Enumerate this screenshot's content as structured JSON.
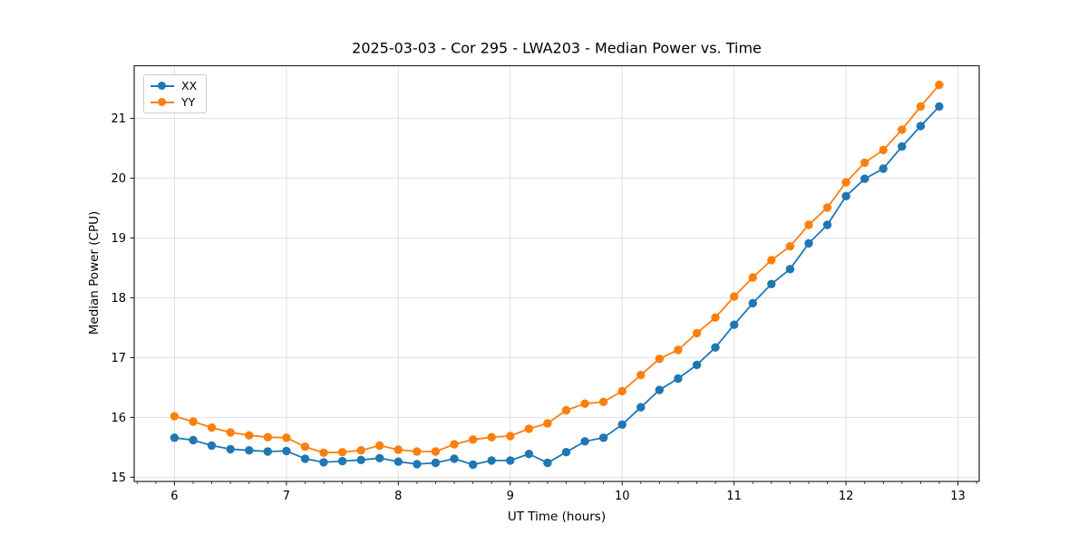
{
  "chart_data": {
    "type": "line",
    "title": "2025-03-03 - Cor 295 - LWA203 - Median Power vs. Time",
    "xlabel": "UT Time (hours)",
    "ylabel": "Median Power (CPU)",
    "xlim": [
      5.64,
      13.19
    ],
    "ylim": [
      14.93,
      21.88
    ],
    "x_ticks": [
      6,
      7,
      8,
      9,
      10,
      11,
      12,
      13
    ],
    "y_ticks": [
      15,
      16,
      17,
      18,
      19,
      20,
      21
    ],
    "x_minor_step": 0.16667,
    "grid": true,
    "grid_color": "#e3e3e3",
    "spine_color": "#262626",
    "legend_position": "upper-left",
    "x": [
      6.0,
      6.167,
      6.333,
      6.5,
      6.667,
      6.833,
      7.0,
      7.167,
      7.333,
      7.5,
      7.667,
      7.833,
      8.0,
      8.167,
      8.333,
      8.5,
      8.667,
      8.833,
      9.0,
      9.167,
      9.333,
      9.5,
      9.667,
      9.833,
      10.0,
      10.167,
      10.333,
      10.5,
      10.667,
      10.833,
      11.0,
      11.167,
      11.333,
      11.5,
      11.667,
      11.833,
      12.0,
      12.167,
      12.333,
      12.5,
      12.667,
      12.833
    ],
    "series": [
      {
        "name": "XX",
        "color": "#1f77b4",
        "values": [
          15.66,
          15.62,
          15.53,
          15.47,
          15.45,
          15.43,
          15.44,
          15.31,
          15.25,
          15.27,
          15.29,
          15.32,
          15.26,
          15.22,
          15.24,
          15.31,
          15.21,
          15.28,
          15.28,
          15.39,
          15.24,
          15.42,
          15.6,
          15.66,
          15.88,
          16.17,
          16.46,
          16.65,
          16.88,
          17.17,
          17.55,
          17.91,
          18.23,
          18.48,
          18.91,
          19.22,
          19.7,
          19.99,
          20.16,
          20.53,
          20.87,
          21.2
        ]
      },
      {
        "name": "YY",
        "color": "#ff7f0e",
        "values": [
          16.02,
          15.93,
          15.83,
          15.75,
          15.7,
          15.67,
          15.66,
          15.51,
          15.41,
          15.42,
          15.45,
          15.53,
          15.46,
          15.43,
          15.43,
          15.55,
          15.63,
          15.67,
          15.69,
          15.81,
          15.9,
          16.12,
          16.23,
          16.26,
          16.44,
          16.71,
          16.98,
          17.13,
          17.41,
          17.67,
          18.02,
          18.34,
          18.63,
          18.86,
          19.22,
          19.51,
          19.93,
          20.26,
          20.47,
          20.81,
          21.2,
          21.56
        ]
      }
    ]
  }
}
